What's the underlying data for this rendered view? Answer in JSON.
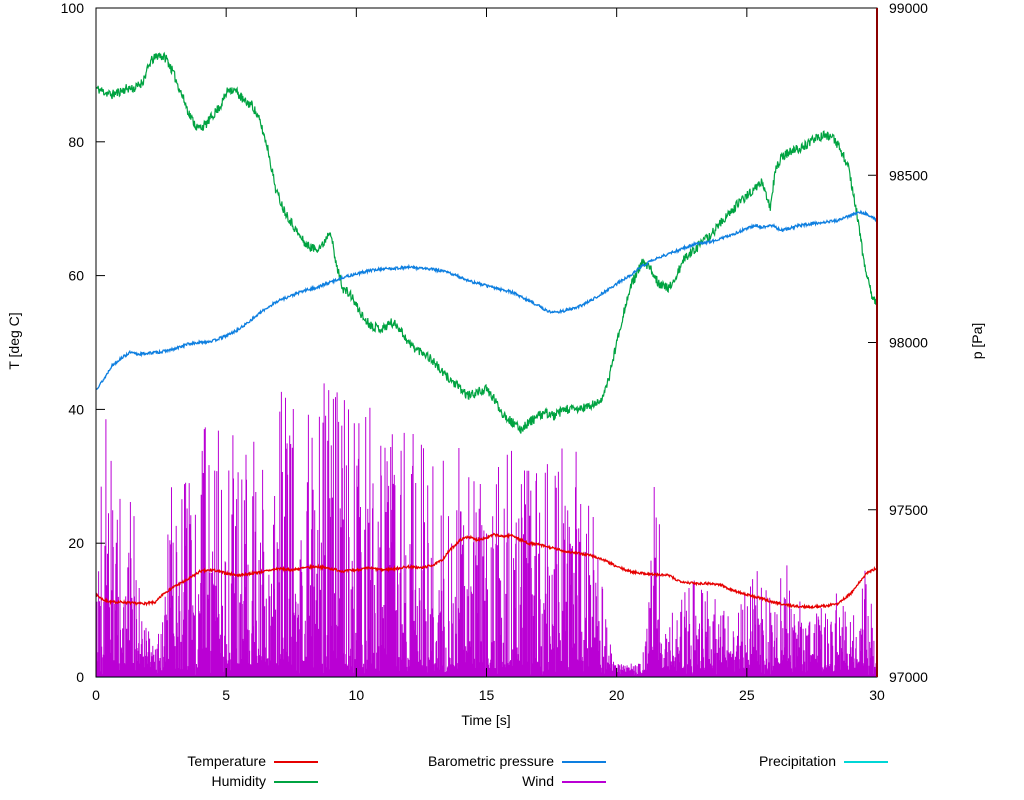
{
  "chart_data": {
    "type": "line",
    "title": "",
    "xlabel": "Time [s]",
    "ylabel_left": "T [deg C]",
    "ylabel_right": "p [Pa]",
    "x_range": [
      0,
      30
    ],
    "x_ticks": [
      0,
      5,
      10,
      15,
      20,
      25,
      30
    ],
    "y_left_range": [
      0,
      100
    ],
    "y_left_ticks": [
      0,
      20,
      40,
      60,
      80,
      100
    ],
    "y_right_range": [
      97000,
      99000
    ],
    "y_right_ticks": [
      97000,
      97500,
      98000,
      98500,
      99000
    ],
    "grid": false,
    "legend_position": "bottom",
    "legend": [
      {
        "label": "Temperature",
        "color": "#e60000"
      },
      {
        "label": "Humidity",
        "color": "#00a341"
      },
      {
        "label": "Barometric pressure",
        "color": "#0e7fe0"
      },
      {
        "label": "Wind",
        "color": "#ba00d4"
      },
      {
        "label": "Precipitation",
        "color": "#00d6d6"
      }
    ],
    "marker_line": {
      "x": 30,
      "color": "#8b0000"
    },
    "series": [
      {
        "name": "Precipitation",
        "axis": "left",
        "color": "#00d6d6",
        "style": "line",
        "noise": 0,
        "seed": 5,
        "width": 1.2,
        "x": [
          0,
          30
        ],
        "y": [
          0,
          0
        ]
      },
      {
        "name": "Wind",
        "axis": "left",
        "color": "#ba00d4",
        "style": "impulses",
        "seed": 42,
        "baseline": 2,
        "width": 1,
        "envelope_x": [
          0,
          0.3,
          0.6,
          1,
          1.5,
          1.8,
          2.5,
          2.8,
          4,
          4.3,
          5,
          6,
          7,
          7.8,
          8.5,
          9,
          10,
          11,
          12,
          13,
          14,
          15,
          16,
          17,
          18,
          19,
          19.6,
          20,
          21,
          21.4,
          21.6,
          21.8,
          22.5,
          23,
          23.5,
          24,
          24.5,
          25,
          25.5,
          26,
          26.5,
          27,
          27.5,
          28,
          28.5,
          29,
          29.5,
          30
        ],
        "envelope_y": [
          30,
          48,
          30,
          25,
          25,
          6,
          6,
          28,
          30,
          45,
          32,
          35,
          40,
          48,
          40,
          45,
          38,
          40,
          38,
          35,
          30,
          30,
          32,
          30,
          32,
          30,
          8,
          2,
          2,
          30,
          30,
          4,
          14,
          15,
          12,
          10,
          8,
          12,
          23,
          10,
          17,
          10,
          8,
          10,
          12,
          8,
          15,
          10
        ]
      },
      {
        "name": "Humidity",
        "axis": "left",
        "color": "#00a341",
        "style": "line",
        "noise": 0.7,
        "seed": 11,
        "width": 1.2,
        "x": [
          0,
          0.3,
          0.6,
          0.9,
          1.2,
          1.5,
          1.8,
          2.1,
          2.4,
          2.7,
          3,
          3.3,
          3.6,
          3.9,
          4.2,
          4.5,
          4.8,
          5.1,
          5.4,
          5.7,
          6,
          6.3,
          6.6,
          6.9,
          7.2,
          7.5,
          7.8,
          8.1,
          8.4,
          8.7,
          9,
          9.2,
          9.5,
          9.8,
          10,
          10.3,
          10.6,
          11,
          11.3,
          11.6,
          12,
          12.3,
          12.6,
          13,
          13.3,
          13.6,
          14,
          14.3,
          14.6,
          15,
          15.3,
          15.6,
          16,
          16.3,
          16.6,
          17,
          17.3,
          17.6,
          18,
          18.5,
          19,
          19.3,
          19.6,
          20,
          20.3,
          20.6,
          21,
          21.3,
          21.6,
          22,
          22.3,
          22.6,
          23,
          23.3,
          23.6,
          24,
          24.3,
          24.6,
          25,
          25.3,
          25.6,
          25.9,
          26.1,
          26.4,
          26.7,
          27,
          27.3,
          27.6,
          28,
          28.3,
          28.6,
          28.9,
          29.2,
          29.5,
          29.8,
          30
        ],
        "y": [
          88,
          87.5,
          87,
          87.5,
          88,
          88,
          89,
          92,
          93,
          92.5,
          90,
          87,
          84,
          82,
          82.5,
          84,
          85.5,
          88,
          87.5,
          86,
          85.5,
          83,
          79,
          73,
          70,
          68,
          66,
          64.5,
          64,
          64.5,
          67,
          62,
          58,
          57,
          55.5,
          53.5,
          52.5,
          52,
          53,
          52.5,
          50,
          49,
          48.5,
          47,
          45.5,
          44.5,
          43,
          42,
          42.5,
          43,
          41.5,
          39.5,
          38,
          37,
          38,
          39,
          39.5,
          39,
          40,
          40,
          40.5,
          41,
          43,
          50,
          55,
          59,
          62,
          61,
          59,
          58,
          60,
          62.5,
          64,
          65,
          66,
          68,
          69,
          70.5,
          72,
          73,
          74,
          70,
          76,
          78,
          78.5,
          79,
          79.5,
          80.5,
          81,
          80.5,
          79,
          76,
          70,
          62,
          57,
          56
        ]
      },
      {
        "name": "Barometric pressure",
        "axis": "right",
        "color": "#0e7fe0",
        "style": "line",
        "noise": 4,
        "seed": 13,
        "width": 1.3,
        "x": [
          0,
          0.3,
          0.6,
          1,
          1.3,
          1.6,
          2,
          2.5,
          3,
          3.5,
          4,
          4.5,
          5,
          5.5,
          6,
          6.5,
          7,
          7.5,
          8,
          8.5,
          9,
          9.5,
          10,
          10.5,
          11,
          11.5,
          12,
          12.5,
          13,
          13.5,
          14,
          14.5,
          15,
          15.5,
          16,
          16.5,
          17,
          17.3,
          17.6,
          18,
          18.5,
          19,
          19.5,
          20,
          20.5,
          21,
          21.5,
          22,
          22.5,
          23,
          23.5,
          24,
          24.5,
          25,
          25.3,
          25.6,
          26,
          26.3,
          26.6,
          27,
          27.5,
          28,
          28.5,
          29,
          29.3,
          29.6,
          30
        ],
        "y": [
          97860,
          97890,
          97930,
          97955,
          97970,
          97965,
          97968,
          97972,
          97980,
          97995,
          98000,
          98005,
          98020,
          98040,
          98070,
          98100,
          98125,
          98140,
          98155,
          98165,
          98180,
          98195,
          98205,
          98215,
          98220,
          98222,
          98225,
          98222,
          98218,
          98210,
          98195,
          98180,
          98170,
          98160,
          98150,
          98130,
          98110,
          98095,
          98090,
          98095,
          98105,
          98125,
          98150,
          98175,
          98200,
          98230,
          98250,
          98265,
          98280,
          98295,
          98300,
          98310,
          98325,
          98340,
          98350,
          98345,
          98350,
          98335,
          98340,
          98350,
          98355,
          98360,
          98365,
          98380,
          98390,
          98385,
          98365
        ]
      },
      {
        "name": "Temperature",
        "axis": "left",
        "color": "#e60000",
        "style": "line",
        "noise": 0.18,
        "seed": 7,
        "width": 1.3,
        "x": [
          0,
          0.3,
          0.6,
          1,
          1.5,
          2,
          2.3,
          2.6,
          3,
          3.5,
          4,
          4.5,
          5,
          5.5,
          6,
          6.5,
          7,
          7.5,
          8,
          8.5,
          9,
          9.5,
          10,
          10.5,
          11,
          11.5,
          12,
          12.5,
          13,
          13.3,
          13.6,
          14,
          14.3,
          14.6,
          15,
          15.3,
          15.6,
          16,
          16.3,
          16.6,
          17,
          17.5,
          18,
          18.5,
          19,
          19.5,
          20,
          20.5,
          21,
          21.5,
          22,
          22.3,
          22.6,
          23,
          23.5,
          24,
          24.3,
          24.6,
          25,
          25.5,
          26,
          26.5,
          27,
          27.5,
          28,
          28.5,
          29,
          29.3,
          29.6,
          30
        ],
        "y": [
          12.3,
          11.5,
          11.2,
          11.2,
          11.0,
          11.0,
          11.2,
          12.5,
          13.5,
          14.5,
          15.8,
          16.0,
          15.5,
          15.2,
          15.5,
          15.8,
          16.2,
          16.0,
          16.3,
          16.5,
          16.2,
          15.8,
          16.0,
          16.3,
          16.0,
          16.2,
          16.5,
          16.3,
          16.8,
          17.5,
          19.0,
          20.5,
          21.0,
          20.5,
          20.8,
          21.3,
          21.0,
          21.2,
          20.5,
          20.0,
          19.8,
          19.3,
          18.8,
          18.5,
          18.2,
          17.5,
          16.5,
          15.8,
          15.5,
          15.3,
          15.2,
          14.5,
          14.2,
          14.0,
          14.0,
          13.8,
          13.2,
          12.8,
          12.3,
          11.8,
          11.2,
          10.8,
          10.5,
          10.5,
          10.6,
          11.0,
          12.5,
          14.0,
          15.5,
          16.3
        ]
      }
    ]
  }
}
